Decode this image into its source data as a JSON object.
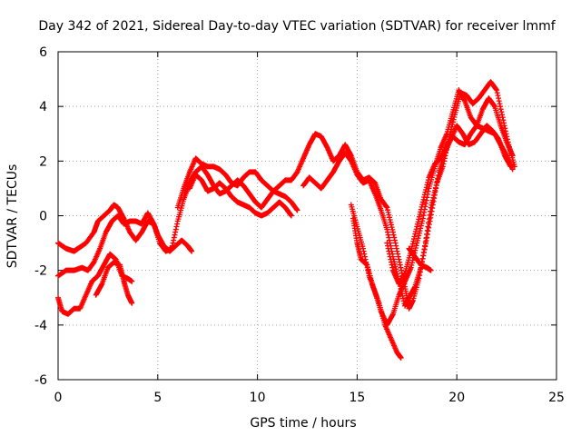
{
  "chart_data": {
    "type": "scatter",
    "title": "Day 342 of 2021, Sidereal Day-to-day VTEC variation (SDTVAR) for receiver lmmf",
    "xlabel": "GPS time / hours",
    "ylabel": "SDTVAR / TECUs",
    "xlim": [
      0,
      25
    ],
    "ylim": [
      -6,
      6
    ],
    "xticks": [
      0,
      5,
      10,
      15,
      20,
      25
    ],
    "yticks": [
      -6,
      -4,
      -2,
      0,
      2,
      4,
      6
    ],
    "xtick_labels": [
      "0",
      "5",
      "10",
      "15",
      "20",
      "25"
    ],
    "ytick_labels": [
      "-6",
      "-4",
      "-2",
      "0",
      "2",
      "4",
      "6"
    ],
    "grid": true,
    "marker": "+",
    "color": "#ff0000",
    "series": [
      {
        "points": [
          [
            0.0,
            -1.0
          ],
          [
            0.4,
            -1.2
          ],
          [
            0.8,
            -1.3
          ],
          [
            1.0,
            -1.2
          ],
          [
            1.4,
            -1.0
          ],
          [
            1.8,
            -0.6
          ],
          [
            2.0,
            -0.2
          ],
          [
            2.3,
            0.0
          ],
          [
            2.6,
            0.2
          ],
          [
            2.8,
            0.4
          ],
          [
            3.0,
            0.3
          ],
          [
            3.3,
            -0.1
          ],
          [
            3.6,
            -0.6
          ],
          [
            3.9,
            -0.9
          ],
          [
            4.2,
            -0.6
          ],
          [
            4.5,
            -0.2
          ],
          [
            4.8,
            -0.3
          ],
          [
            5.0,
            -0.7
          ],
          [
            5.3,
            -1.1
          ],
          [
            5.6,
            -1.3
          ],
          [
            5.9,
            -1.1
          ],
          [
            6.2,
            -0.9
          ],
          [
            6.5,
            -1.1
          ],
          [
            6.7,
            -1.3
          ]
        ]
      },
      {
        "points": [
          [
            0.0,
            -2.2
          ],
          [
            0.4,
            -2.0
          ],
          [
            0.8,
            -2.0
          ],
          [
            1.2,
            -1.9
          ],
          [
            1.5,
            -2.0
          ],
          [
            1.8,
            -1.7
          ],
          [
            2.1,
            -1.2
          ],
          [
            2.4,
            -0.6
          ],
          [
            2.7,
            -0.2
          ],
          [
            3.0,
            0.0
          ],
          [
            3.3,
            -0.3
          ],
          [
            3.6,
            -0.2
          ],
          [
            3.9,
            -0.2
          ],
          [
            4.2,
            -0.3
          ],
          [
            4.5,
            0.1
          ],
          [
            4.8,
            -0.3
          ],
          [
            5.1,
            -1.0
          ],
          [
            5.4,
            -1.3
          ],
          [
            5.7,
            -1.2
          ],
          [
            6.0,
            -0.2
          ],
          [
            6.3,
            0.6
          ],
          [
            6.6,
            1.2
          ],
          [
            6.9,
            1.6
          ],
          [
            7.2,
            1.8
          ],
          [
            7.5,
            1.5
          ],
          [
            7.8,
            1.1
          ],
          [
            8.1,
            0.8
          ],
          [
            8.4,
            0.9
          ],
          [
            8.7,
            1.1
          ],
          [
            9.0,
            1.3
          ],
          [
            9.3,
            1.1
          ],
          [
            9.6,
            0.8
          ],
          [
            9.9,
            0.5
          ],
          [
            10.2,
            0.3
          ],
          [
            10.5,
            0.6
          ],
          [
            10.8,
            0.9
          ],
          [
            11.1,
            0.8
          ],
          [
            11.4,
            0.7
          ],
          [
            11.7,
            0.5
          ],
          [
            12.0,
            0.2
          ]
        ]
      },
      {
        "points": [
          [
            0.0,
            -3.0
          ],
          [
            0.2,
            -3.5
          ],
          [
            0.5,
            -3.6
          ],
          [
            0.8,
            -3.4
          ],
          [
            1.1,
            -3.4
          ],
          [
            1.4,
            -2.9
          ],
          [
            1.7,
            -2.4
          ],
          [
            2.0,
            -2.2
          ],
          [
            2.3,
            -1.8
          ],
          [
            2.6,
            -1.4
          ],
          [
            2.9,
            -1.6
          ],
          [
            3.2,
            -2.2
          ],
          [
            3.5,
            -2.3
          ],
          [
            3.7,
            -2.4
          ]
        ]
      },
      {
        "points": [
          [
            1.9,
            -2.9
          ],
          [
            2.2,
            -2.5
          ],
          [
            2.5,
            -1.9
          ],
          [
            2.8,
            -1.7
          ],
          [
            3.1,
            -1.8
          ],
          [
            3.3,
            -2.4
          ],
          [
            3.5,
            -2.9
          ],
          [
            3.7,
            -3.2
          ]
        ]
      },
      {
        "points": [
          [
            6.0,
            0.3
          ],
          [
            6.3,
            1.0
          ],
          [
            6.6,
            1.6
          ],
          [
            6.9,
            2.1
          ],
          [
            7.2,
            1.9
          ],
          [
            7.5,
            1.8
          ],
          [
            7.8,
            1.8
          ],
          [
            8.1,
            1.7
          ],
          [
            8.4,
            1.5
          ],
          [
            8.7,
            1.2
          ],
          [
            9.0,
            1.1
          ],
          [
            9.3,
            1.4
          ],
          [
            9.6,
            1.6
          ],
          [
            9.9,
            1.6
          ],
          [
            10.2,
            1.3
          ],
          [
            10.5,
            1.1
          ],
          [
            10.8,
            0.9
          ],
          [
            11.1,
            1.1
          ],
          [
            11.4,
            1.3
          ],
          [
            11.7,
            1.3
          ],
          [
            12.0,
            1.6
          ],
          [
            12.3,
            2.1
          ],
          [
            12.6,
            2.6
          ],
          [
            12.9,
            3.0
          ],
          [
            13.2,
            2.9
          ],
          [
            13.5,
            2.5
          ],
          [
            13.8,
            2.0
          ],
          [
            14.1,
            2.2
          ],
          [
            14.4,
            2.6
          ],
          [
            14.7,
            2.2
          ],
          [
            15.0,
            1.6
          ],
          [
            15.3,
            1.3
          ],
          [
            15.6,
            1.4
          ],
          [
            15.9,
            1.2
          ],
          [
            16.2,
            0.6
          ],
          [
            16.5,
            0.3
          ],
          [
            16.8,
            -0.6
          ],
          [
            17.1,
            -1.6
          ],
          [
            17.4,
            -2.6
          ],
          [
            17.6,
            -3.4
          ],
          [
            17.8,
            -3.1
          ],
          [
            18.1,
            -2.3
          ],
          [
            18.4,
            -1.1
          ],
          [
            18.7,
            0.3
          ],
          [
            19.0,
            1.2
          ],
          [
            19.3,
            1.8
          ],
          [
            19.6,
            2.8
          ],
          [
            19.9,
            3.7
          ],
          [
            20.2,
            4.5
          ],
          [
            20.5,
            4.4
          ],
          [
            20.8,
            4.1
          ],
          [
            21.1,
            4.3
          ],
          [
            21.4,
            4.6
          ],
          [
            21.7,
            4.9
          ],
          [
            22.0,
            4.6
          ],
          [
            22.3,
            3.6
          ],
          [
            22.6,
            2.6
          ],
          [
            22.9,
            1.8
          ]
        ]
      },
      {
        "points": [
          [
            6.6,
            1.0
          ],
          [
            6.9,
            1.5
          ],
          [
            7.2,
            1.3
          ],
          [
            7.5,
            0.9
          ],
          [
            7.8,
            1.0
          ],
          [
            8.1,
            1.2
          ],
          [
            8.4,
            1.0
          ],
          [
            8.7,
            0.7
          ],
          [
            9.0,
            0.5
          ],
          [
            9.3,
            0.4
          ],
          [
            9.6,
            0.3
          ],
          [
            9.9,
            0.1
          ],
          [
            10.2,
            0.0
          ],
          [
            10.5,
            0.1
          ],
          [
            10.8,
            0.3
          ],
          [
            11.1,
            0.5
          ],
          [
            11.4,
            0.3
          ],
          [
            11.7,
            0.0
          ]
        ]
      },
      {
        "points": [
          [
            12.3,
            1.1
          ],
          [
            12.6,
            1.4
          ],
          [
            12.9,
            1.2
          ],
          [
            13.2,
            1.0
          ],
          [
            13.5,
            1.3
          ],
          [
            13.8,
            1.6
          ],
          [
            14.1,
            2.0
          ],
          [
            14.4,
            2.3
          ],
          [
            14.7,
            2.0
          ],
          [
            15.0,
            1.5
          ],
          [
            15.3,
            1.2
          ],
          [
            15.6,
            1.3
          ],
          [
            15.9,
            0.8
          ],
          [
            16.2,
            0.2
          ],
          [
            16.5,
            -0.5
          ],
          [
            16.8,
            -1.5
          ],
          [
            17.1,
            -2.4
          ],
          [
            17.4,
            -3.3
          ],
          [
            17.6,
            -3.0
          ],
          [
            17.9,
            -2.6
          ],
          [
            18.2,
            -1.9
          ],
          [
            18.5,
            -0.8
          ],
          [
            18.8,
            0.4
          ],
          [
            19.1,
            1.6
          ],
          [
            19.4,
            2.3
          ],
          [
            19.7,
            2.8
          ],
          [
            20.0,
            3.3
          ],
          [
            20.3,
            3.0
          ],
          [
            20.6,
            2.6
          ],
          [
            20.9,
            2.7
          ],
          [
            21.2,
            3.0
          ],
          [
            21.5,
            3.3
          ],
          [
            21.8,
            3.1
          ],
          [
            22.1,
            2.8
          ],
          [
            22.4,
            2.2
          ],
          [
            22.7,
            1.8
          ]
        ]
      },
      {
        "points": [
          [
            14.8,
            -0.1
          ],
          [
            15.0,
            -1.0
          ],
          [
            15.2,
            -1.6
          ],
          [
            15.5,
            -1.8
          ],
          [
            15.8,
            -2.6
          ],
          [
            16.1,
            -3.2
          ],
          [
            16.4,
            -4.0
          ],
          [
            16.7,
            -4.5
          ],
          [
            17.0,
            -5.0
          ],
          [
            17.2,
            -5.2
          ]
        ]
      },
      {
        "points": [
          [
            14.7,
            0.4
          ],
          [
            15.0,
            -0.4
          ],
          [
            15.3,
            -1.2
          ],
          [
            15.6,
            -2.2
          ],
          [
            15.9,
            -2.8
          ],
          [
            16.2,
            -3.5
          ],
          [
            16.5,
            -4.0
          ],
          [
            16.8,
            -3.6
          ],
          [
            17.1,
            -2.9
          ],
          [
            17.4,
            -2.4
          ],
          [
            17.7,
            -1.9
          ],
          [
            18.0,
            -1.0
          ],
          [
            18.3,
            -0.1
          ],
          [
            18.6,
            1.0
          ],
          [
            18.9,
            1.8
          ],
          [
            19.2,
            2.5
          ],
          [
            19.5,
            3.0
          ],
          [
            19.8,
            3.8
          ],
          [
            20.1,
            4.6
          ],
          [
            20.4,
            4.2
          ],
          [
            20.7,
            3.6
          ],
          [
            21.0,
            3.3
          ],
          [
            21.3,
            3.9
          ],
          [
            21.6,
            4.3
          ],
          [
            21.9,
            4.0
          ],
          [
            22.2,
            3.3
          ],
          [
            22.5,
            2.7
          ],
          [
            22.8,
            2.2
          ]
        ]
      },
      {
        "points": [
          [
            16.5,
            -1.0
          ],
          [
            16.8,
            -2.0
          ],
          [
            17.1,
            -2.5
          ],
          [
            17.4,
            -2.1
          ],
          [
            17.7,
            -1.3
          ],
          [
            18.0,
            -0.4
          ],
          [
            18.3,
            0.5
          ],
          [
            18.6,
            1.4
          ],
          [
            18.9,
            1.9
          ],
          [
            19.2,
            2.1
          ],
          [
            19.5,
            2.6
          ],
          [
            19.8,
            2.9
          ],
          [
            20.1,
            2.7
          ],
          [
            20.4,
            2.6
          ],
          [
            20.7,
            3.0
          ],
          [
            21.0,
            3.3
          ],
          [
            21.3,
            3.2
          ],
          [
            21.6,
            3.1
          ],
          [
            21.9,
            3.0
          ],
          [
            22.2,
            2.6
          ],
          [
            22.5,
            2.2
          ],
          [
            22.8,
            1.7
          ]
        ]
      },
      {
        "points": [
          [
            17.6,
            -1.2
          ],
          [
            17.9,
            -1.5
          ],
          [
            18.2,
            -1.8
          ],
          [
            18.5,
            -1.9
          ],
          [
            18.7,
            -2.0
          ]
        ]
      }
    ]
  }
}
